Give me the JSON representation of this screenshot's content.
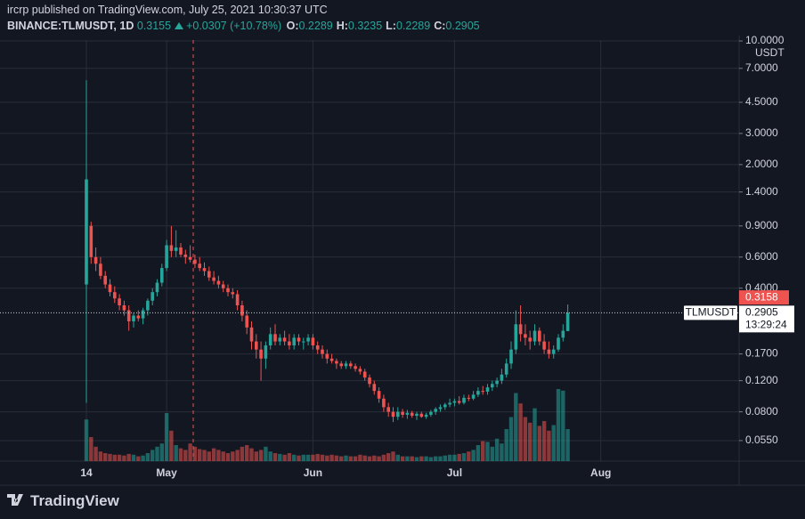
{
  "chart_data": {
    "type": "candlestick",
    "title": "ircrp published on TradingView.com, July 25, 2021 10:30:37 UTC",
    "symbol": "BINANCE:TLMUSDT, 1D",
    "last": 0.3155,
    "change": "+0.0307 (+10.78%)",
    "legend": [
      {
        "label": "O:",
        "value": 0.2289
      },
      {
        "label": "H:",
        "value": 0.3235
      },
      {
        "label": "L:",
        "value": 0.2289
      },
      {
        "label": "C:",
        "value": 0.2905
      }
    ],
    "unit": "USDT",
    "brand": "TradingView",
    "log_scale": true,
    "grid": true,
    "up_color": "#26a69a",
    "down_color": "#ef5350",
    "ylim": [
      0.0421,
      10.12
    ],
    "yticks": [
      {
        "value": 10,
        "label": "10.0000"
      },
      {
        "value": 7,
        "label": "7.0000"
      },
      {
        "value": 4.5,
        "label": "4.5000"
      },
      {
        "value": 3,
        "label": "3.0000"
      },
      {
        "value": 2,
        "label": "2.0000"
      },
      {
        "value": 1.4,
        "label": "1.4000"
      },
      {
        "value": 0.9,
        "label": "0.9000"
      },
      {
        "value": 0.6,
        "label": "0.6000"
      },
      {
        "value": 0.4,
        "label": "0.4000"
      },
      {
        "value": 0.17,
        "label": "0.1700"
      },
      {
        "value": 0.12,
        "label": "0.1200"
      },
      {
        "value": 0.08,
        "label": "0.0800"
      },
      {
        "value": 0.055,
        "label": "0.0550"
      }
    ],
    "xticks": [
      {
        "value": 0,
        "label": "14"
      },
      {
        "value": 17,
        "label": "May"
      },
      {
        "value": 48,
        "label": "Jun"
      },
      {
        "value": 78,
        "label": "Jul"
      },
      {
        "value": 109,
        "label": "Aug"
      }
    ],
    "current_price_tag": 0.3158,
    "last_price": {
      "label": "TLMUSDT",
      "value": 0.2905,
      "countdown": "13:29:24"
    },
    "ohlc": [
      [
        0.42,
        6.0,
        0.09,
        1.65
      ],
      [
        0.9,
        0.95,
        0.55,
        0.6
      ],
      [
        0.6,
        0.68,
        0.5,
        0.55
      ],
      [
        0.55,
        0.6,
        0.45,
        0.47
      ],
      [
        0.47,
        0.5,
        0.4,
        0.42
      ],
      [
        0.42,
        0.45,
        0.36,
        0.38
      ],
      [
        0.38,
        0.41,
        0.33,
        0.35
      ],
      [
        0.35,
        0.37,
        0.3,
        0.32
      ],
      [
        0.32,
        0.34,
        0.28,
        0.3
      ],
      [
        0.3,
        0.32,
        0.23,
        0.26
      ],
      [
        0.26,
        0.29,
        0.24,
        0.28
      ],
      [
        0.28,
        0.3,
        0.26,
        0.27
      ],
      [
        0.27,
        0.31,
        0.25,
        0.3
      ],
      [
        0.3,
        0.35,
        0.28,
        0.34
      ],
      [
        0.34,
        0.4,
        0.32,
        0.38
      ],
      [
        0.38,
        0.45,
        0.36,
        0.43
      ],
      [
        0.43,
        0.55,
        0.41,
        0.52
      ],
      [
        0.52,
        0.75,
        0.5,
        0.7
      ],
      [
        0.7,
        0.9,
        0.6,
        0.65
      ],
      [
        0.65,
        0.85,
        0.6,
        0.68
      ],
      [
        0.68,
        0.72,
        0.6,
        0.62
      ],
      [
        0.62,
        0.66,
        0.55,
        0.6
      ],
      [
        0.6,
        0.7,
        0.56,
        0.58
      ],
      [
        0.58,
        0.62,
        0.52,
        0.55
      ],
      [
        0.55,
        0.6,
        0.5,
        0.52
      ],
      [
        0.52,
        0.56,
        0.47,
        0.5
      ],
      [
        0.5,
        0.53,
        0.44,
        0.46
      ],
      [
        0.46,
        0.5,
        0.42,
        0.44
      ],
      [
        0.44,
        0.47,
        0.4,
        0.42
      ],
      [
        0.42,
        0.44,
        0.38,
        0.4
      ],
      [
        0.4,
        0.42,
        0.36,
        0.38
      ],
      [
        0.38,
        0.4,
        0.35,
        0.37
      ],
      [
        0.37,
        0.39,
        0.3,
        0.32
      ],
      [
        0.32,
        0.34,
        0.26,
        0.28
      ],
      [
        0.28,
        0.3,
        0.22,
        0.24
      ],
      [
        0.24,
        0.26,
        0.18,
        0.2
      ],
      [
        0.2,
        0.22,
        0.16,
        0.18
      ],
      [
        0.18,
        0.2,
        0.12,
        0.16
      ],
      [
        0.16,
        0.2,
        0.14,
        0.19
      ],
      [
        0.19,
        0.24,
        0.18,
        0.22
      ],
      [
        0.22,
        0.25,
        0.19,
        0.2
      ],
      [
        0.2,
        0.22,
        0.19,
        0.21
      ],
      [
        0.21,
        0.23,
        0.19,
        0.2
      ],
      [
        0.2,
        0.22,
        0.18,
        0.19
      ],
      [
        0.19,
        0.22,
        0.18,
        0.21
      ],
      [
        0.21,
        0.22,
        0.19,
        0.2
      ],
      [
        0.2,
        0.21,
        0.18,
        0.2
      ],
      [
        0.2,
        0.22,
        0.19,
        0.21
      ],
      [
        0.21,
        0.22,
        0.18,
        0.19
      ],
      [
        0.19,
        0.2,
        0.17,
        0.18
      ],
      [
        0.18,
        0.19,
        0.16,
        0.17
      ],
      [
        0.17,
        0.18,
        0.15,
        0.16
      ],
      [
        0.16,
        0.17,
        0.15,
        0.155
      ],
      [
        0.155,
        0.16,
        0.14,
        0.15
      ],
      [
        0.15,
        0.155,
        0.14,
        0.145
      ],
      [
        0.145,
        0.155,
        0.14,
        0.15
      ],
      [
        0.15,
        0.155,
        0.14,
        0.145
      ],
      [
        0.145,
        0.15,
        0.135,
        0.14
      ],
      [
        0.14,
        0.145,
        0.13,
        0.135
      ],
      [
        0.135,
        0.14,
        0.12,
        0.125
      ],
      [
        0.125,
        0.13,
        0.11,
        0.115
      ],
      [
        0.115,
        0.12,
        0.1,
        0.105
      ],
      [
        0.105,
        0.11,
        0.09,
        0.095
      ],
      [
        0.095,
        0.1,
        0.08,
        0.085
      ],
      [
        0.085,
        0.09,
        0.075,
        0.08
      ],
      [
        0.08,
        0.085,
        0.07,
        0.075
      ],
      [
        0.075,
        0.085,
        0.072,
        0.08
      ],
      [
        0.08,
        0.083,
        0.074,
        0.077
      ],
      [
        0.077,
        0.082,
        0.073,
        0.079
      ],
      [
        0.079,
        0.081,
        0.074,
        0.076
      ],
      [
        0.076,
        0.08,
        0.072,
        0.078
      ],
      [
        0.078,
        0.08,
        0.074,
        0.075
      ],
      [
        0.075,
        0.079,
        0.073,
        0.077
      ],
      [
        0.077,
        0.082,
        0.075,
        0.08
      ],
      [
        0.08,
        0.085,
        0.077,
        0.083
      ],
      [
        0.083,
        0.088,
        0.08,
        0.085
      ],
      [
        0.085,
        0.09,
        0.082,
        0.088
      ],
      [
        0.088,
        0.095,
        0.085,
        0.09
      ],
      [
        0.09,
        0.095,
        0.086,
        0.092
      ],
      [
        0.092,
        0.098,
        0.088,
        0.09
      ],
      [
        0.09,
        0.1,
        0.088,
        0.096
      ],
      [
        0.096,
        0.1,
        0.092,
        0.095
      ],
      [
        0.095,
        0.105,
        0.093,
        0.1
      ],
      [
        0.1,
        0.11,
        0.097,
        0.105
      ],
      [
        0.105,
        0.112,
        0.1,
        0.104
      ],
      [
        0.104,
        0.115,
        0.1,
        0.11
      ],
      [
        0.11,
        0.12,
        0.105,
        0.115
      ],
      [
        0.115,
        0.125,
        0.11,
        0.12
      ],
      [
        0.12,
        0.14,
        0.115,
        0.13
      ],
      [
        0.13,
        0.16,
        0.125,
        0.15
      ],
      [
        0.15,
        0.2,
        0.14,
        0.18
      ],
      [
        0.18,
        0.3,
        0.17,
        0.25
      ],
      [
        0.25,
        0.32,
        0.2,
        0.22
      ],
      [
        0.22,
        0.25,
        0.19,
        0.21
      ],
      [
        0.21,
        0.23,
        0.18,
        0.2
      ],
      [
        0.2,
        0.25,
        0.19,
        0.23
      ],
      [
        0.23,
        0.24,
        0.19,
        0.2
      ],
      [
        0.2,
        0.22,
        0.17,
        0.18
      ],
      [
        0.18,
        0.2,
        0.16,
        0.17
      ],
      [
        0.17,
        0.19,
        0.16,
        0.18
      ],
      [
        0.18,
        0.22,
        0.175,
        0.21
      ],
      [
        0.21,
        0.25,
        0.2,
        0.23
      ],
      [
        0.2289,
        0.3235,
        0.2289,
        0.2905
      ]
    ],
    "volume": [
      52,
      30,
      18,
      12,
      10,
      9,
      8,
      8,
      7,
      9,
      8,
      6,
      7,
      10,
      14,
      18,
      22,
      60,
      38,
      20,
      16,
      14,
      22,
      18,
      15,
      14,
      12,
      16,
      14,
      12,
      10,
      12,
      14,
      18,
      20,
      16,
      12,
      14,
      18,
      12,
      10,
      9,
      8,
      10,
      8,
      7,
      8,
      8,
      8,
      9,
      8,
      7,
      8,
      7,
      6,
      7,
      6,
      6,
      8,
      7,
      6,
      7,
      6,
      8,
      10,
      12,
      8,
      6,
      6,
      6,
      5,
      6,
      6,
      5,
      6,
      6,
      7,
      8,
      8,
      9,
      10,
      12,
      14,
      20,
      25,
      24,
      18,
      28,
      22,
      40,
      55,
      85,
      72,
      55,
      48,
      66,
      44,
      50,
      38,
      45,
      90,
      88,
      40
    ]
  }
}
